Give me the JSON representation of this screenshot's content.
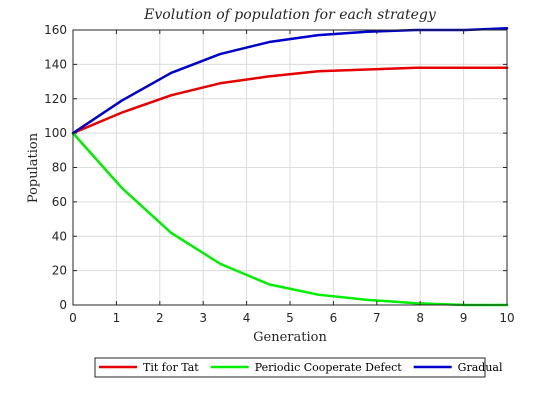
{
  "chart_data": {
    "type": "line",
    "title": "Evolution of population for each strategy",
    "xlabel": "Generation",
    "ylabel": "Population",
    "xlim": [
      0,
      10
    ],
    "ylim": [
      0,
      160
    ],
    "xticks": [
      0,
      1,
      2,
      3,
      4,
      5,
      6,
      7,
      8,
      9,
      10
    ],
    "yticks": [
      0,
      20,
      40,
      60,
      80,
      100,
      120,
      140,
      160
    ],
    "grid": true,
    "legend_position": "bottom",
    "series": [
      {
        "name": "Tit for Tat",
        "color": "#e60000",
        "x": [
          0,
          1.13,
          2.26,
          3.39,
          4.52,
          5.65,
          6.78,
          7.91,
          9.04,
          10
        ],
        "values": [
          100,
          112,
          122,
          129,
          133,
          136,
          137,
          138,
          138,
          138
        ]
      },
      {
        "name": "Periodic Cooperate Defect",
        "color": "#00ee00",
        "x": [
          0,
          1.13,
          2.26,
          3.39,
          4.52,
          5.65,
          6.78,
          7.91,
          9.04,
          10
        ],
        "values": [
          100,
          68,
          42,
          24,
          12,
          6,
          3,
          1,
          0,
          0
        ]
      },
      {
        "name": "Gradual",
        "color": "#0000cc",
        "x": [
          0,
          1.13,
          2.26,
          3.39,
          4.52,
          5.65,
          6.78,
          7.91,
          9.04,
          10
        ],
        "values": [
          100,
          119,
          135,
          146,
          153,
          157,
          159,
          160,
          160,
          161
        ]
      }
    ]
  }
}
